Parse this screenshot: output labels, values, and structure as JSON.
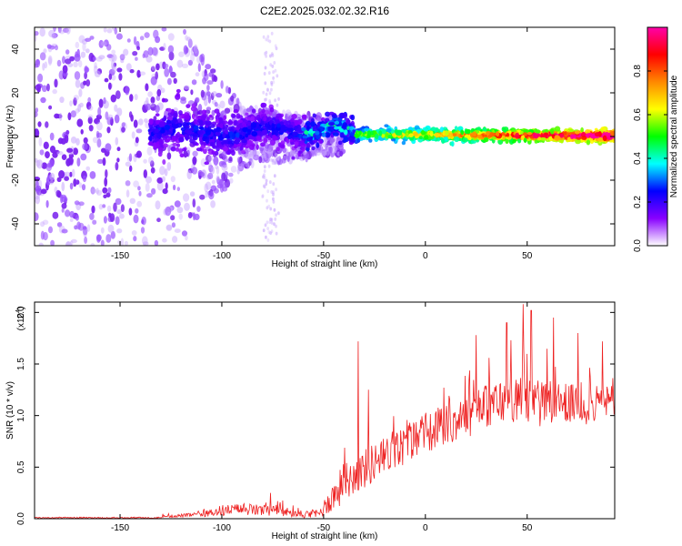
{
  "title": "C2E2.2025.032.02.32.R16",
  "chart_data": [
    {
      "type": "heatmap",
      "xlabel": "Height of straight line (km)",
      "ylabel": "Frequency (Hz)",
      "xlim": [
        -192,
        93
      ],
      "ylim": [
        -50,
        50
      ],
      "xticks": [
        -150,
        -100,
        -50,
        0,
        50
      ],
      "yticks": [
        -40,
        -20,
        0,
        20,
        40
      ],
      "xtick_labels": [
        "-150",
        "-100",
        "-50",
        "0",
        "50"
      ],
      "ytick_labels": [
        "-40",
        "-20",
        "0",
        "20",
        "40"
      ],
      "colorbar": {
        "label": "Normalized spectral amplitude",
        "range": [
          0,
          1
        ],
        "ticks": [
          0.0,
          0.2,
          0.4,
          0.6,
          0.8
        ],
        "tick_labels": [
          "0.0",
          "0.2",
          "0.4",
          "0.6",
          "0.8"
        ],
        "colors": [
          "#ffffff",
          "#8800ff",
          "#0000ff",
          "#00ffff",
          "#00ff00",
          "#ffff00",
          "#ff8800",
          "#ff0000",
          "#ff00aa"
        ]
      },
      "grid": false
    },
    {
      "type": "line",
      "xlabel": "Height of straight line (km)",
      "ylabel": "SNR (10 * v/v)",
      "y_multiplier_label": "(x10",
      "y_multiplier_exp": "4",
      "y_multiplier_close": ")",
      "xlim": [
        -192,
        93
      ],
      "ylim": [
        0,
        2.1
      ],
      "xticks": [
        -150,
        -100,
        -50,
        0,
        50
      ],
      "yticks": [
        0.0,
        0.5,
        1.0,
        1.5,
        2.0
      ],
      "xtick_labels": [
        "-150",
        "-100",
        "-50",
        "0",
        "50"
      ],
      "ytick_labels": [
        "0.0",
        "0.5",
        "1.0",
        "1.5",
        "2.0"
      ],
      "line_color": "#ee2222",
      "grid": false,
      "envelope": {
        "x": [
          -192,
          -130,
          -110,
          -100,
          -90,
          -80,
          -70,
          -60,
          -52,
          -48,
          -44,
          -40,
          -35,
          -30,
          -25,
          -20,
          -15,
          -10,
          -5,
          0,
          5,
          10,
          15,
          20,
          25,
          30,
          35,
          40,
          45,
          50,
          55,
          60,
          65,
          70,
          75,
          80,
          85,
          93
        ],
        "base": [
          0.01,
          0.02,
          0.04,
          0.08,
          0.09,
          0.08,
          0.07,
          0.03,
          0.05,
          0.15,
          0.25,
          0.35,
          0.42,
          0.48,
          0.55,
          0.6,
          0.65,
          0.72,
          0.78,
          0.82,
          0.86,
          0.9,
          0.95,
          1.0,
          1.05,
          1.1,
          1.12,
          1.15,
          1.15,
          1.15,
          1.12,
          1.1,
          1.1,
          1.12,
          1.1,
          1.1,
          1.12,
          1.15
        ],
        "amp": [
          0.01,
          0.02,
          0.04,
          0.1,
          0.1,
          0.1,
          0.1,
          0.04,
          0.1,
          0.2,
          0.3,
          0.35,
          0.35,
          0.35,
          0.35,
          0.35,
          0.35,
          0.35,
          0.35,
          0.35,
          0.35,
          0.35,
          0.35,
          0.4,
          0.4,
          0.4,
          0.4,
          0.4,
          0.4,
          0.45,
          0.45,
          0.4,
          0.4,
          0.35,
          0.35,
          0.35,
          0.3,
          0.3
        ]
      },
      "spikes": [
        {
          "x": -33,
          "y": 1.72
        },
        {
          "x": -28,
          "y": 1.25
        },
        {
          "x": -76,
          "y": 0.25
        },
        {
          "x": 25,
          "y": 1.78
        },
        {
          "x": 48,
          "y": 2.08
        },
        {
          "x": 52,
          "y": 2.02
        },
        {
          "x": 40,
          "y": 1.9
        },
        {
          "x": 63,
          "y": 1.95
        },
        {
          "x": 75,
          "y": 1.8
        },
        {
          "x": 87,
          "y": 1.72
        }
      ]
    }
  ]
}
